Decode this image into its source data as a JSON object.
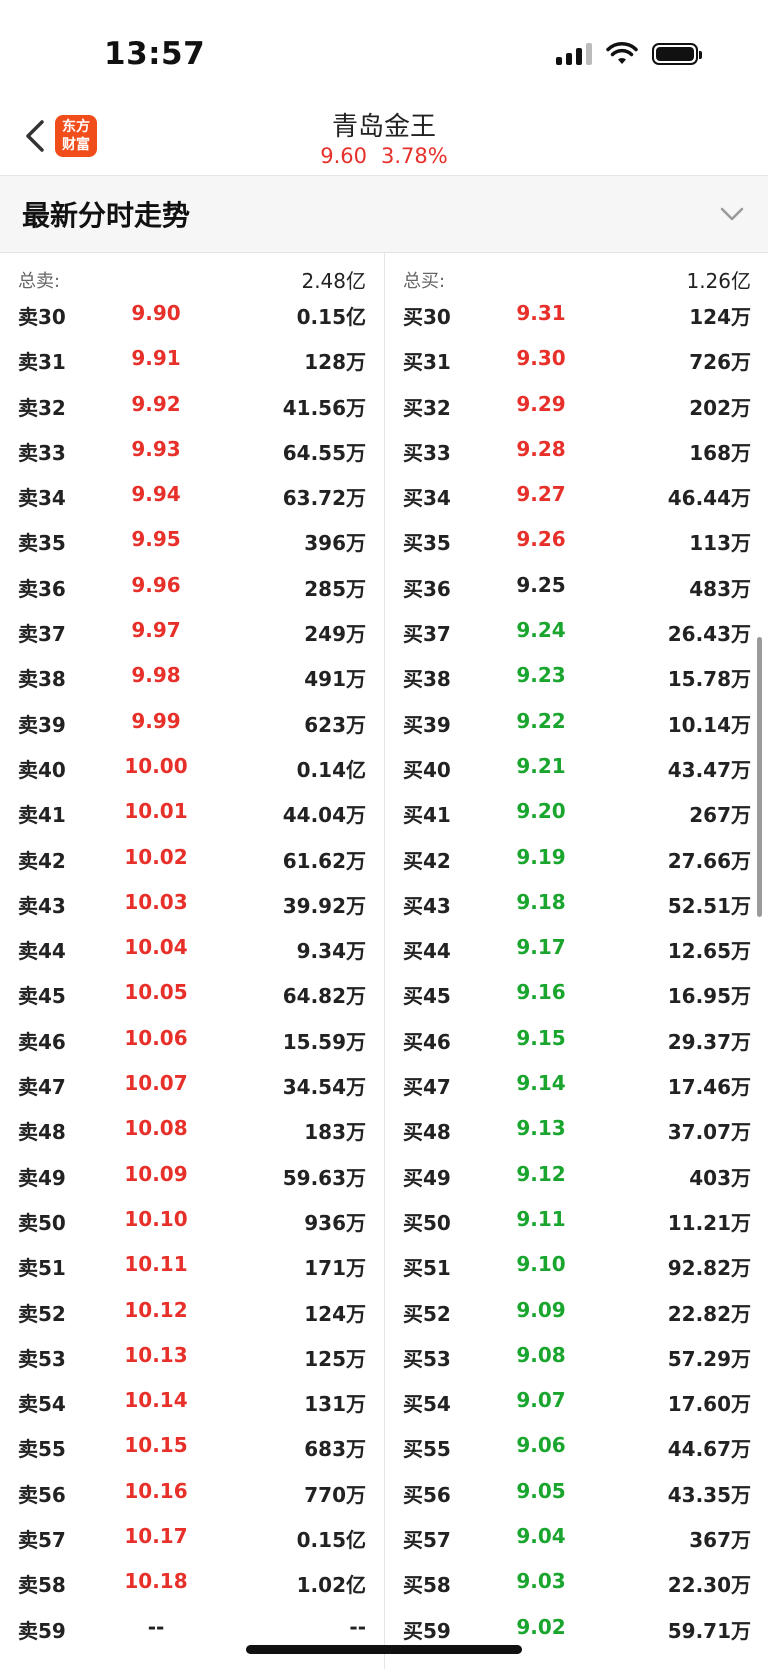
{
  "status_bar": {
    "time": "13:57"
  },
  "nav": {
    "logo_line1": "东方",
    "logo_line2": "财富",
    "title": "青岛金王",
    "price": "9.60",
    "change_pct": "3.78%"
  },
  "section": {
    "title": "最新分时走势"
  },
  "sell": {
    "total_label": "总卖:",
    "total_value": "2.48亿",
    "rows": [
      {
        "label": "卖30",
        "price": "9.90",
        "vol": "0.15亿",
        "dir": "up"
      },
      {
        "label": "卖31",
        "price": "9.91",
        "vol": "128万",
        "dir": "up"
      },
      {
        "label": "卖32",
        "price": "9.92",
        "vol": "41.56万",
        "dir": "up"
      },
      {
        "label": "卖33",
        "price": "9.93",
        "vol": "64.55万",
        "dir": "up"
      },
      {
        "label": "卖34",
        "price": "9.94",
        "vol": "63.72万",
        "dir": "up"
      },
      {
        "label": "卖35",
        "price": "9.95",
        "vol": "396万",
        "dir": "up"
      },
      {
        "label": "卖36",
        "price": "9.96",
        "vol": "285万",
        "dir": "up"
      },
      {
        "label": "卖37",
        "price": "9.97",
        "vol": "249万",
        "dir": "up"
      },
      {
        "label": "卖38",
        "price": "9.98",
        "vol": "491万",
        "dir": "up"
      },
      {
        "label": "卖39",
        "price": "9.99",
        "vol": "623万",
        "dir": "up"
      },
      {
        "label": "卖40",
        "price": "10.00",
        "vol": "0.14亿",
        "dir": "up"
      },
      {
        "label": "卖41",
        "price": "10.01",
        "vol": "44.04万",
        "dir": "up"
      },
      {
        "label": "卖42",
        "price": "10.02",
        "vol": "61.62万",
        "dir": "up"
      },
      {
        "label": "卖43",
        "price": "10.03",
        "vol": "39.92万",
        "dir": "up"
      },
      {
        "label": "卖44",
        "price": "10.04",
        "vol": "9.34万",
        "dir": "up"
      },
      {
        "label": "卖45",
        "price": "10.05",
        "vol": "64.82万",
        "dir": "up"
      },
      {
        "label": "卖46",
        "price": "10.06",
        "vol": "15.59万",
        "dir": "up"
      },
      {
        "label": "卖47",
        "price": "10.07",
        "vol": "34.54万",
        "dir": "up"
      },
      {
        "label": "卖48",
        "price": "10.08",
        "vol": "183万",
        "dir": "up"
      },
      {
        "label": "卖49",
        "price": "10.09",
        "vol": "59.63万",
        "dir": "up"
      },
      {
        "label": "卖50",
        "price": "10.10",
        "vol": "936万",
        "dir": "up"
      },
      {
        "label": "卖51",
        "price": "10.11",
        "vol": "171万",
        "dir": "up"
      },
      {
        "label": "卖52",
        "price": "10.12",
        "vol": "124万",
        "dir": "up"
      },
      {
        "label": "卖53",
        "price": "10.13",
        "vol": "125万",
        "dir": "up"
      },
      {
        "label": "卖54",
        "price": "10.14",
        "vol": "131万",
        "dir": "up"
      },
      {
        "label": "卖55",
        "price": "10.15",
        "vol": "683万",
        "dir": "up"
      },
      {
        "label": "卖56",
        "price": "10.16",
        "vol": "770万",
        "dir": "up"
      },
      {
        "label": "卖57",
        "price": "10.17",
        "vol": "0.15亿",
        "dir": "up"
      },
      {
        "label": "卖58",
        "price": "10.18",
        "vol": "1.02亿",
        "dir": "up"
      },
      {
        "label": "卖59",
        "price": "--",
        "vol": "--",
        "dir": "flat"
      }
    ]
  },
  "buy": {
    "total_label": "总买:",
    "total_value": "1.26亿",
    "rows": [
      {
        "label": "买30",
        "price": "9.31",
        "vol": "124万",
        "dir": "up"
      },
      {
        "label": "买31",
        "price": "9.30",
        "vol": "726万",
        "dir": "up"
      },
      {
        "label": "买32",
        "price": "9.29",
        "vol": "202万",
        "dir": "up"
      },
      {
        "label": "买33",
        "price": "9.28",
        "vol": "168万",
        "dir": "up"
      },
      {
        "label": "买34",
        "price": "9.27",
        "vol": "46.44万",
        "dir": "up"
      },
      {
        "label": "买35",
        "price": "9.26",
        "vol": "113万",
        "dir": "up"
      },
      {
        "label": "买36",
        "price": "9.25",
        "vol": "483万",
        "dir": "flat"
      },
      {
        "label": "买37",
        "price": "9.24",
        "vol": "26.43万",
        "dir": "down"
      },
      {
        "label": "买38",
        "price": "9.23",
        "vol": "15.78万",
        "dir": "down"
      },
      {
        "label": "买39",
        "price": "9.22",
        "vol": "10.14万",
        "dir": "down"
      },
      {
        "label": "买40",
        "price": "9.21",
        "vol": "43.47万",
        "dir": "down"
      },
      {
        "label": "买41",
        "price": "9.20",
        "vol": "267万",
        "dir": "down"
      },
      {
        "label": "买42",
        "price": "9.19",
        "vol": "27.66万",
        "dir": "down"
      },
      {
        "label": "买43",
        "price": "9.18",
        "vol": "52.51万",
        "dir": "down"
      },
      {
        "label": "买44",
        "price": "9.17",
        "vol": "12.65万",
        "dir": "down"
      },
      {
        "label": "买45",
        "price": "9.16",
        "vol": "16.95万",
        "dir": "down"
      },
      {
        "label": "买46",
        "price": "9.15",
        "vol": "29.37万",
        "dir": "down"
      },
      {
        "label": "买47",
        "price": "9.14",
        "vol": "17.46万",
        "dir": "down"
      },
      {
        "label": "买48",
        "price": "9.13",
        "vol": "37.07万",
        "dir": "down"
      },
      {
        "label": "买49",
        "price": "9.12",
        "vol": "403万",
        "dir": "down"
      },
      {
        "label": "买50",
        "price": "9.11",
        "vol": "11.21万",
        "dir": "down"
      },
      {
        "label": "买51",
        "price": "9.10",
        "vol": "92.82万",
        "dir": "down"
      },
      {
        "label": "买52",
        "price": "9.09",
        "vol": "22.82万",
        "dir": "down"
      },
      {
        "label": "买53",
        "price": "9.08",
        "vol": "57.29万",
        "dir": "down"
      },
      {
        "label": "买54",
        "price": "9.07",
        "vol": "17.60万",
        "dir": "down"
      },
      {
        "label": "买55",
        "price": "9.06",
        "vol": "44.67万",
        "dir": "down"
      },
      {
        "label": "买56",
        "price": "9.05",
        "vol": "43.35万",
        "dir": "down"
      },
      {
        "label": "买57",
        "price": "9.04",
        "vol": "367万",
        "dir": "down"
      },
      {
        "label": "买58",
        "price": "9.03",
        "vol": "22.30万",
        "dir": "down"
      },
      {
        "label": "买59",
        "price": "9.02",
        "vol": "59.71万",
        "dir": "down"
      }
    ]
  },
  "colors": {
    "up": "#e8302a",
    "down": "#1aa52e",
    "flat": "#222222",
    "logo_bg": "#f04d1a"
  },
  "icons": {
    "back": "chevron-left-icon",
    "expand": "chevron-down-icon",
    "signal": "cellular-signal-icon",
    "wifi": "wifi-icon",
    "battery": "battery-icon"
  }
}
